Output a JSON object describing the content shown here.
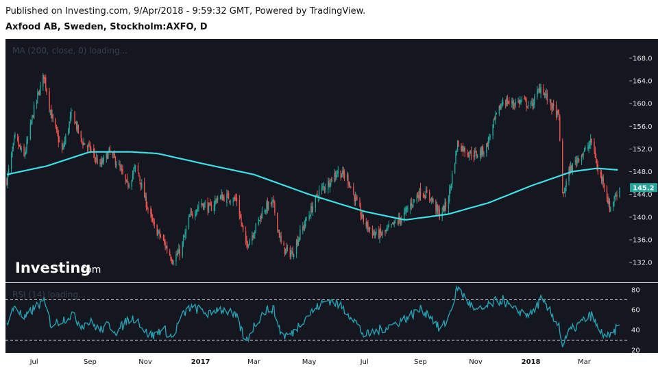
{
  "header": {
    "published": "Published on Investing.com, 9/Apr/2018 - 9:59:32 GMT, Powered by TradingView.",
    "symbol": "Axfood AB, Sweden, Stockholm:AXFO, D"
  },
  "watermark": {
    "brand": "Investing",
    "suffix": ".com"
  },
  "colors": {
    "background": "#141720",
    "up": "#26a69a",
    "down": "#ef5350",
    "ma": "#3ee0e6",
    "rsi": "#26a0b0",
    "last_price_bg": "#26a69a"
  },
  "chart_data": [
    {
      "type": "candlestick",
      "indicator_label": "MA (200, close, 0) loading...",
      "y_ticks": [
        168.0,
        164.0,
        160.0,
        156.0,
        152.0,
        148.0,
        144.0,
        140.0,
        136.0,
        132.0
      ],
      "y_tick_labels": [
        "168.0",
        "164.0",
        "160.0",
        "156.0",
        "152.0",
        "148.0",
        "144.0",
        "140.0",
        "136.0",
        "132.0"
      ],
      "ylim": [
        129.0,
        171.0
      ],
      "last_price": "145.2",
      "x_labels": [
        "Jul",
        "Sep",
        "Nov",
        "2017",
        "Mar",
        "May",
        "Jul",
        "Sep",
        "Nov",
        "2018",
        "Mar"
      ],
      "close_anchors": [
        [
          "2016-06-01",
          146.5
        ],
        [
          "2016-06-10",
          154.0
        ],
        [
          "2016-06-20",
          150.5
        ],
        [
          "2016-07-01",
          159.0
        ],
        [
          "2016-07-12",
          165.0
        ],
        [
          "2016-07-20",
          158.0
        ],
        [
          "2016-08-01",
          151.5
        ],
        [
          "2016-08-12",
          158.5
        ],
        [
          "2016-08-22",
          153.5
        ],
        [
          "2016-09-01",
          152.0
        ],
        [
          "2016-09-12",
          149.0
        ],
        [
          "2016-09-22",
          151.5
        ],
        [
          "2016-10-01",
          149.5
        ],
        [
          "2016-10-12",
          145.5
        ],
        [
          "2016-10-22",
          149.0
        ],
        [
          "2016-11-01",
          143.0
        ],
        [
          "2016-11-10",
          138.5
        ],
        [
          "2016-11-20",
          136.0
        ],
        [
          "2016-12-01",
          132.5
        ],
        [
          "2016-12-10",
          134.0
        ],
        [
          "2016-12-20",
          140.0
        ],
        [
          "2017-01-01",
          142.5
        ],
        [
          "2017-01-12",
          141.5
        ],
        [
          "2017-01-20",
          143.5
        ],
        [
          "2017-02-01",
          143.5
        ],
        [
          "2017-02-10",
          143.0
        ],
        [
          "2017-02-20",
          135.0
        ],
        [
          "2017-03-01",
          137.5
        ],
        [
          "2017-03-12",
          141.5
        ],
        [
          "2017-03-22",
          142.5
        ],
        [
          "2017-04-01",
          134.5
        ],
        [
          "2017-04-12",
          133.5
        ],
        [
          "2017-04-22",
          137.5
        ],
        [
          "2017-05-01",
          140.5
        ],
        [
          "2017-05-12",
          144.5
        ],
        [
          "2017-05-22",
          146.0
        ],
        [
          "2017-06-01",
          148.0
        ],
        [
          "2017-06-12",
          147.0
        ],
        [
          "2017-06-20",
          143.5
        ],
        [
          "2017-07-01",
          139.0
        ],
        [
          "2017-07-12",
          137.0
        ],
        [
          "2017-07-22",
          137.0
        ],
        [
          "2017-08-01",
          138.5
        ],
        [
          "2017-08-12",
          140.0
        ],
        [
          "2017-08-22",
          142.5
        ],
        [
          "2017-09-01",
          144.5
        ],
        [
          "2017-09-12",
          143.5
        ],
        [
          "2017-09-22",
          140.5
        ],
        [
          "2017-10-01",
          142.5
        ],
        [
          "2017-10-12",
          153.0
        ],
        [
          "2017-10-22",
          151.5
        ],
        [
          "2017-11-01",
          151.0
        ],
        [
          "2017-11-12",
          152.0
        ],
        [
          "2017-11-22",
          157.0
        ],
        [
          "2017-12-01",
          160.5
        ],
        [
          "2017-12-12",
          160.0
        ],
        [
          "2017-12-22",
          160.5
        ],
        [
          "2018-01-01",
          159.5
        ],
        [
          "2018-01-12",
          163.0
        ],
        [
          "2018-01-22",
          160.0
        ],
        [
          "2018-02-01",
          157.5
        ],
        [
          "2018-02-05",
          143.5
        ],
        [
          "2018-02-12",
          148.0
        ],
        [
          "2018-02-22",
          150.5
        ],
        [
          "2018-03-01",
          151.5
        ],
        [
          "2018-03-10",
          153.5
        ],
        [
          "2018-03-16",
          148.0
        ],
        [
          "2018-03-22",
          146.5
        ],
        [
          "2018-03-29",
          141.5
        ],
        [
          "2018-04-09",
          145.2
        ]
      ],
      "ma200_anchors": [
        [
          "2016-06-01",
          147.5
        ],
        [
          "2016-07-15",
          149.0
        ],
        [
          "2016-09-01",
          151.5
        ],
        [
          "2016-10-15",
          151.5
        ],
        [
          "2016-11-15",
          151.2
        ],
        [
          "2017-01-01",
          149.5
        ],
        [
          "2017-03-01",
          147.5
        ],
        [
          "2017-05-01",
          144.0
        ],
        [
          "2017-07-01",
          141.0
        ],
        [
          "2017-08-15",
          139.5
        ],
        [
          "2017-10-01",
          140.5
        ],
        [
          "2017-11-15",
          142.5
        ],
        [
          "2018-01-01",
          145.5
        ],
        [
          "2018-02-15",
          148.0
        ],
        [
          "2018-03-15",
          148.6
        ],
        [
          "2018-04-09",
          148.3
        ]
      ]
    },
    {
      "type": "line",
      "indicator_label": "RSI (14) loading...",
      "y_ticks": [
        80,
        60,
        40,
        20
      ],
      "y_tick_labels": [
        "80",
        "60",
        "40",
        "20"
      ],
      "ylim": [
        18,
        86
      ],
      "levels": [
        70,
        30
      ],
      "anchors": [
        [
          "2016-06-01",
          45
        ],
        [
          "2016-06-10",
          65
        ],
        [
          "2016-06-20",
          50
        ],
        [
          "2016-07-01",
          62
        ],
        [
          "2016-07-12",
          68
        ],
        [
          "2016-07-20",
          45
        ],
        [
          "2016-08-01",
          50
        ],
        [
          "2016-08-12",
          55
        ],
        [
          "2016-08-22",
          45
        ],
        [
          "2016-09-01",
          48
        ],
        [
          "2016-09-12",
          40
        ],
        [
          "2016-09-22",
          45
        ],
        [
          "2016-10-01",
          38
        ],
        [
          "2016-10-12",
          50
        ],
        [
          "2016-10-22",
          52
        ],
        [
          "2016-11-01",
          38
        ],
        [
          "2016-11-10",
          34
        ],
        [
          "2016-11-20",
          42
        ],
        [
          "2016-12-01",
          32
        ],
        [
          "2016-12-10",
          52
        ],
        [
          "2016-12-20",
          62
        ],
        [
          "2017-01-01",
          60
        ],
        [
          "2017-01-12",
          55
        ],
        [
          "2017-01-20",
          62
        ],
        [
          "2017-02-01",
          58
        ],
        [
          "2017-02-10",
          52
        ],
        [
          "2017-02-20",
          28
        ],
        [
          "2017-03-01",
          44
        ],
        [
          "2017-03-12",
          58
        ],
        [
          "2017-03-22",
          62
        ],
        [
          "2017-04-01",
          34
        ],
        [
          "2017-04-12",
          36
        ],
        [
          "2017-04-22",
          48
        ],
        [
          "2017-05-01",
          56
        ],
        [
          "2017-05-12",
          64
        ],
        [
          "2017-05-22",
          70
        ],
        [
          "2017-06-01",
          66
        ],
        [
          "2017-06-12",
          58
        ],
        [
          "2017-06-20",
          50
        ],
        [
          "2017-07-01",
          34
        ],
        [
          "2017-07-12",
          38
        ],
        [
          "2017-07-22",
          42
        ],
        [
          "2017-08-01",
          45
        ],
        [
          "2017-08-12",
          50
        ],
        [
          "2017-08-22",
          55
        ],
        [
          "2017-09-01",
          60
        ],
        [
          "2017-09-12",
          55
        ],
        [
          "2017-09-22",
          40
        ],
        [
          "2017-10-01",
          50
        ],
        [
          "2017-10-12",
          82
        ],
        [
          "2017-10-22",
          70
        ],
        [
          "2017-11-01",
          58
        ],
        [
          "2017-11-12",
          62
        ],
        [
          "2017-11-22",
          68
        ],
        [
          "2017-12-01",
          70
        ],
        [
          "2017-12-12",
          60
        ],
        [
          "2017-12-22",
          58
        ],
        [
          "2018-01-01",
          55
        ],
        [
          "2018-01-12",
          70
        ],
        [
          "2018-01-22",
          58
        ],
        [
          "2018-02-01",
          45
        ],
        [
          "2018-02-05",
          24
        ],
        [
          "2018-02-12",
          38
        ],
        [
          "2018-02-22",
          45
        ],
        [
          "2018-03-01",
          50
        ],
        [
          "2018-03-10",
          55
        ],
        [
          "2018-03-16",
          40
        ],
        [
          "2018-03-22",
          36
        ],
        [
          "2018-03-29",
          32
        ],
        [
          "2018-04-09",
          45
        ]
      ]
    }
  ]
}
